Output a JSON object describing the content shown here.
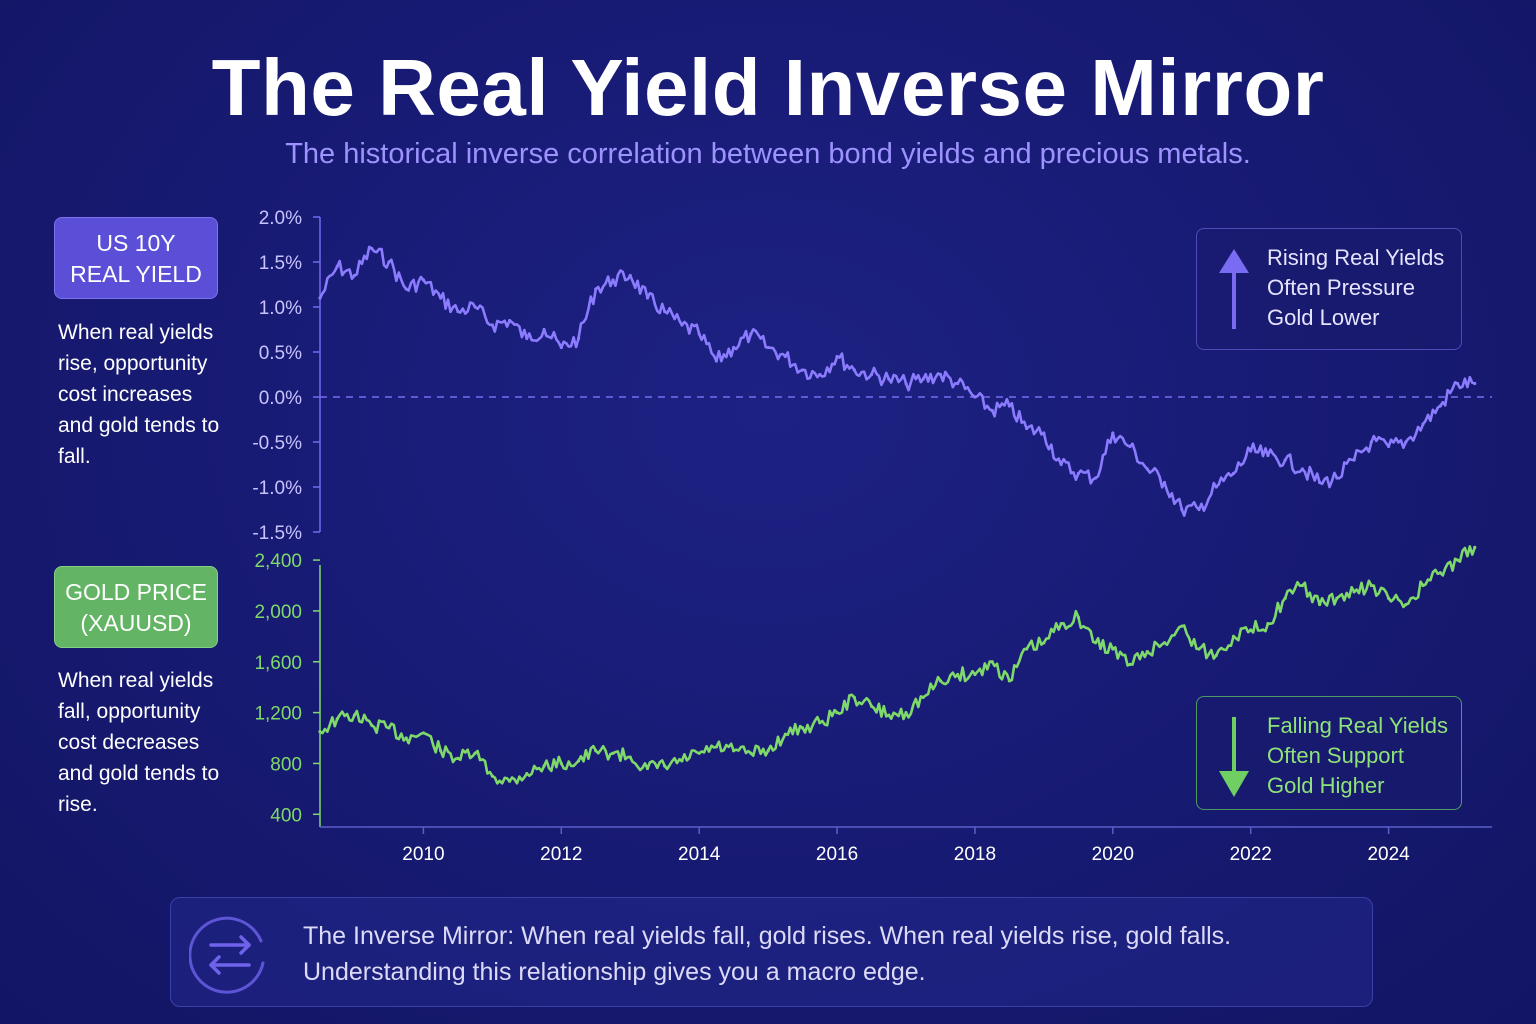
{
  "title": "The Real Yield Inverse Mirror",
  "subtitle": "The historical inverse correlation between bond yields and precious metals.",
  "side": {
    "yield_badge": [
      "US 10Y",
      "REAL YIELD"
    ],
    "yield_text": "When real yields rise, opportunity cost increases and gold tends to fall.",
    "gold_badge": [
      "GOLD PRICE",
      "(XAUUSD)"
    ],
    "gold_text": "When real yields fall, opportunity cost decreases and gold tends to rise."
  },
  "notes": {
    "up": [
      "Rising Real Yields",
      "Often Pressure",
      "Gold Lower"
    ],
    "down": [
      "Falling Real Yields",
      "Often Support",
      "Gold Higher"
    ]
  },
  "footer": {
    "line1": "The Inverse Mirror: When real yields fall, gold rises. When real yields rise, gold falls.",
    "line2": "Understanding this relationship gives you a macro edge.",
    "icon": "swap-arrows-icon"
  },
  "colors": {
    "yield": "#8b7cff",
    "gold": "#7fd96a",
    "background": "#171a72",
    "axis_yield": "#7468f0",
    "axis_gold": "#7fd96a"
  },
  "chart_data": [
    {
      "type": "line",
      "name": "US 10Y Real Yield",
      "ylim": [
        -1.5,
        2.0
      ],
      "xlim": [
        2008.5,
        2025.5
      ],
      "yticks": [
        "2.0%",
        "1.5%",
        "1.0%",
        "0.5%",
        "0.0%",
        "-0.5%",
        "-1.0%",
        "-1.5%"
      ],
      "ytick_values": [
        2.0,
        1.5,
        1.0,
        0.5,
        0.0,
        -0.5,
        -1.0,
        -1.5
      ],
      "reference_line": 0.0,
      "x": [
        2008.5,
        2008.75,
        2009.0,
        2009.25,
        2009.5,
        2009.75,
        2010.0,
        2010.25,
        2010.5,
        2010.75,
        2011.0,
        2011.25,
        2011.5,
        2011.75,
        2012.0,
        2012.25,
        2012.5,
        2012.75,
        2013.0,
        2013.25,
        2013.5,
        2013.75,
        2014.0,
        2014.25,
        2014.5,
        2014.75,
        2015.0,
        2015.25,
        2015.5,
        2015.75,
        2016.0,
        2016.25,
        2016.5,
        2016.75,
        2017.0,
        2017.25,
        2017.5,
        2017.75,
        2018.0,
        2018.25,
        2018.5,
        2018.75,
        2019.0,
        2019.25,
        2019.5,
        2019.75,
        2020.0,
        2020.25,
        2020.5,
        2020.75,
        2021.0,
        2021.25,
        2021.5,
        2021.75,
        2022.0,
        2022.25,
        2022.5,
        2022.75,
        2023.0,
        2023.25,
        2023.5,
        2023.75,
        2024.0,
        2024.25,
        2024.5,
        2024.75,
        2025.0,
        2025.25
      ],
      "values": [
        1.1,
        1.45,
        1.35,
        1.65,
        1.5,
        1.2,
        1.3,
        1.1,
        0.95,
        1.0,
        0.8,
        0.85,
        0.65,
        0.75,
        0.55,
        0.65,
        1.2,
        1.3,
        1.35,
        1.1,
        0.95,
        0.8,
        0.7,
        0.4,
        0.55,
        0.7,
        0.55,
        0.45,
        0.3,
        0.25,
        0.45,
        0.3,
        0.25,
        0.2,
        0.15,
        0.2,
        0.25,
        0.15,
        0.0,
        -0.15,
        -0.1,
        -0.35,
        -0.4,
        -0.75,
        -0.85,
        -0.9,
        -0.4,
        -0.55,
        -0.8,
        -0.95,
        -1.25,
        -1.25,
        -1.0,
        -0.85,
        -0.6,
        -0.65,
        -0.7,
        -0.8,
        -0.95,
        -0.9,
        -0.7,
        -0.5,
        -0.55,
        -0.5,
        -0.3,
        -0.1,
        0.15,
        0.15
      ]
    },
    {
      "type": "line",
      "name": "Gold Price (XAUUSD)",
      "ylim": [
        300,
        2550
      ],
      "xlim": [
        2008.5,
        2025.5
      ],
      "yticks": [
        "2,400",
        "2,000",
        "1,600",
        "1,200",
        "800",
        "400"
      ],
      "ytick_values": [
        2400,
        2000,
        1600,
        1200,
        800,
        400
      ],
      "xticks": [
        "2010",
        "2012",
        "2014",
        "2016",
        "2018",
        "2020",
        "2022",
        "2024"
      ],
      "xtick_values": [
        2010,
        2012,
        2014,
        2016,
        2018,
        2020,
        2022,
        2024
      ],
      "x": [
        2008.5,
        2008.75,
        2009.0,
        2009.25,
        2009.5,
        2009.75,
        2010.0,
        2010.25,
        2010.5,
        2010.75,
        2011.0,
        2011.25,
        2011.5,
        2011.75,
        2012.0,
        2012.25,
        2012.5,
        2012.75,
        2013.0,
        2013.25,
        2013.5,
        2013.75,
        2014.0,
        2014.25,
        2014.5,
        2014.75,
        2015.0,
        2015.25,
        2015.5,
        2015.75,
        2016.0,
        2016.25,
        2016.5,
        2016.75,
        2017.0,
        2017.25,
        2017.5,
        2017.75,
        2018.0,
        2018.25,
        2018.5,
        2018.75,
        2019.0,
        2019.25,
        2019.5,
        2019.75,
        2020.0,
        2020.25,
        2020.5,
        2020.75,
        2021.0,
        2021.25,
        2021.5,
        2021.75,
        2022.0,
        2022.25,
        2022.5,
        2022.75,
        2023.0,
        2023.25,
        2023.5,
        2023.75,
        2024.0,
        2024.25,
        2024.5,
        2024.75,
        2025.0,
        2025.25
      ],
      "values": [
        1050,
        1150,
        1180,
        1100,
        1080,
        1000,
        1040,
        900,
        840,
        880,
        700,
        660,
        720,
        780,
        800,
        820,
        900,
        880,
        850,
        760,
        780,
        820,
        880,
        930,
        900,
        880,
        900,
        1030,
        1080,
        1120,
        1200,
        1320,
        1250,
        1180,
        1200,
        1320,
        1450,
        1500,
        1500,
        1600,
        1450,
        1700,
        1750,
        1900,
        1950,
        1750,
        1700,
        1580,
        1680,
        1750,
        1880,
        1700,
        1650,
        1800,
        1850,
        1900,
        2100,
        2200,
        2050,
        2100,
        2150,
        2200,
        2100,
        2050,
        2200,
        2300,
        2400,
        2500
      ]
    }
  ]
}
